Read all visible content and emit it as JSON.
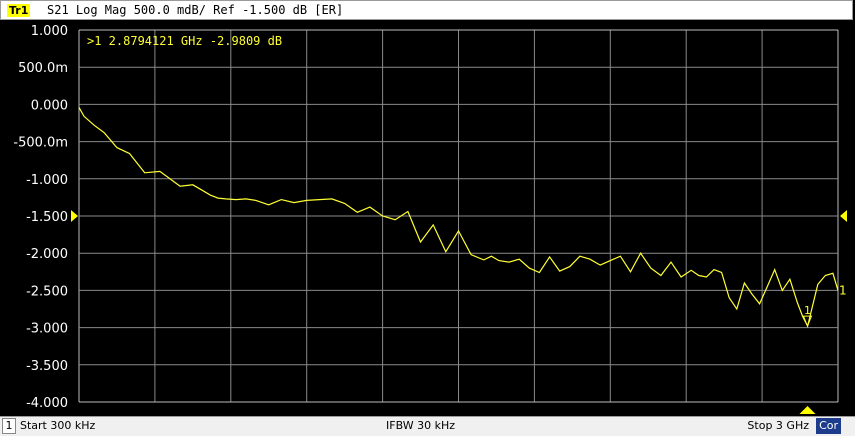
{
  "header": {
    "trace_tag": "Tr1",
    "text": "S21 Log Mag 500.0 mdB/ Ref -1.500 dB [ER]"
  },
  "marker": {
    "readout": ">1  2.8794121 GHz -2.9809 dB",
    "label": "1",
    "trace_end_label": "1"
  },
  "status": {
    "channel": "1",
    "start": "Start 300 kHz",
    "ifbw": "IFBW 30 kHz",
    "stop": "Stop 3 GHz",
    "correction": "Cor"
  },
  "colors": {
    "trace": "#ffff33",
    "grid": "#8a8a8a",
    "background": "#000000",
    "tag": "#ffff00"
  },
  "chart_data": {
    "type": "line",
    "title": "S21 Log Mag 500.0 mdB/ Ref -1.500 dB [ER]",
    "y_tick_labels": [
      "1.000",
      "500.0m",
      "0.000",
      "-500.0m",
      "-1.000",
      "-1.500",
      "-2.000",
      "-2.500",
      "-3.000",
      "-3.500",
      "-4.000"
    ],
    "ylim": [
      -4.0,
      1.0
    ],
    "xlim_ghz": [
      0.0003,
      3.0
    ],
    "grid": true,
    "reference_level_db": -1.5,
    "series": [
      {
        "values_x_ghz": [
          0.0003,
          0.02,
          0.06,
          0.1,
          0.15,
          0.2,
          0.26,
          0.32,
          0.4,
          0.45,
          0.49,
          0.52,
          0.55,
          0.58,
          0.62,
          0.66,
          0.7,
          0.75,
          0.8,
          0.85,
          0.9,
          0.95,
          1.0,
          1.05,
          1.1,
          1.15,
          1.2,
          1.25,
          1.3,
          1.35,
          1.4,
          1.45,
          1.5,
          1.55,
          1.6,
          1.63,
          1.66,
          1.7,
          1.74,
          1.78,
          1.82,
          1.86,
          1.9,
          1.94,
          1.98,
          2.02,
          2.06,
          2.1,
          2.14,
          2.18,
          2.22,
          2.26,
          2.3,
          2.34,
          2.38,
          2.42,
          2.45,
          2.48,
          2.51,
          2.54,
          2.57,
          2.6,
          2.63,
          2.66,
          2.69,
          2.72,
          2.75,
          2.78,
          2.81,
          2.84,
          2.86,
          2.88,
          2.9,
          2.92,
          2.95,
          2.98,
          3.0
        ],
        "values_db": [
          -0.04,
          -0.16,
          -0.28,
          -0.38,
          -0.58,
          -0.66,
          -0.92,
          -0.9,
          -1.1,
          -1.08,
          -1.16,
          -1.22,
          -1.26,
          -1.27,
          -1.28,
          -1.27,
          -1.29,
          -1.35,
          -1.28,
          -1.32,
          -1.29,
          -1.28,
          -1.27,
          -1.33,
          -1.45,
          -1.38,
          -1.5,
          -1.55,
          -1.44,
          -1.85,
          -1.62,
          -1.98,
          -1.7,
          -2.02,
          -2.09,
          -2.04,
          -2.1,
          -2.12,
          -2.08,
          -2.2,
          -2.26,
          -2.05,
          -2.24,
          -2.18,
          -2.04,
          -2.08,
          -2.16,
          -2.1,
          -2.04,
          -2.25,
          -2.0,
          -2.2,
          -2.3,
          -2.12,
          -2.32,
          -2.23,
          -2.3,
          -2.32,
          -2.22,
          -2.26,
          -2.6,
          -2.75,
          -2.4,
          -2.55,
          -2.68,
          -2.45,
          -2.22,
          -2.5,
          -2.35,
          -2.67,
          -2.85,
          -2.98,
          -2.7,
          -2.42,
          -2.3,
          -2.27,
          -2.5
        ]
      }
    ],
    "markers": [
      {
        "label": "1",
        "x_ghz": 2.8794121,
        "y_db": -2.9809
      }
    ]
  }
}
